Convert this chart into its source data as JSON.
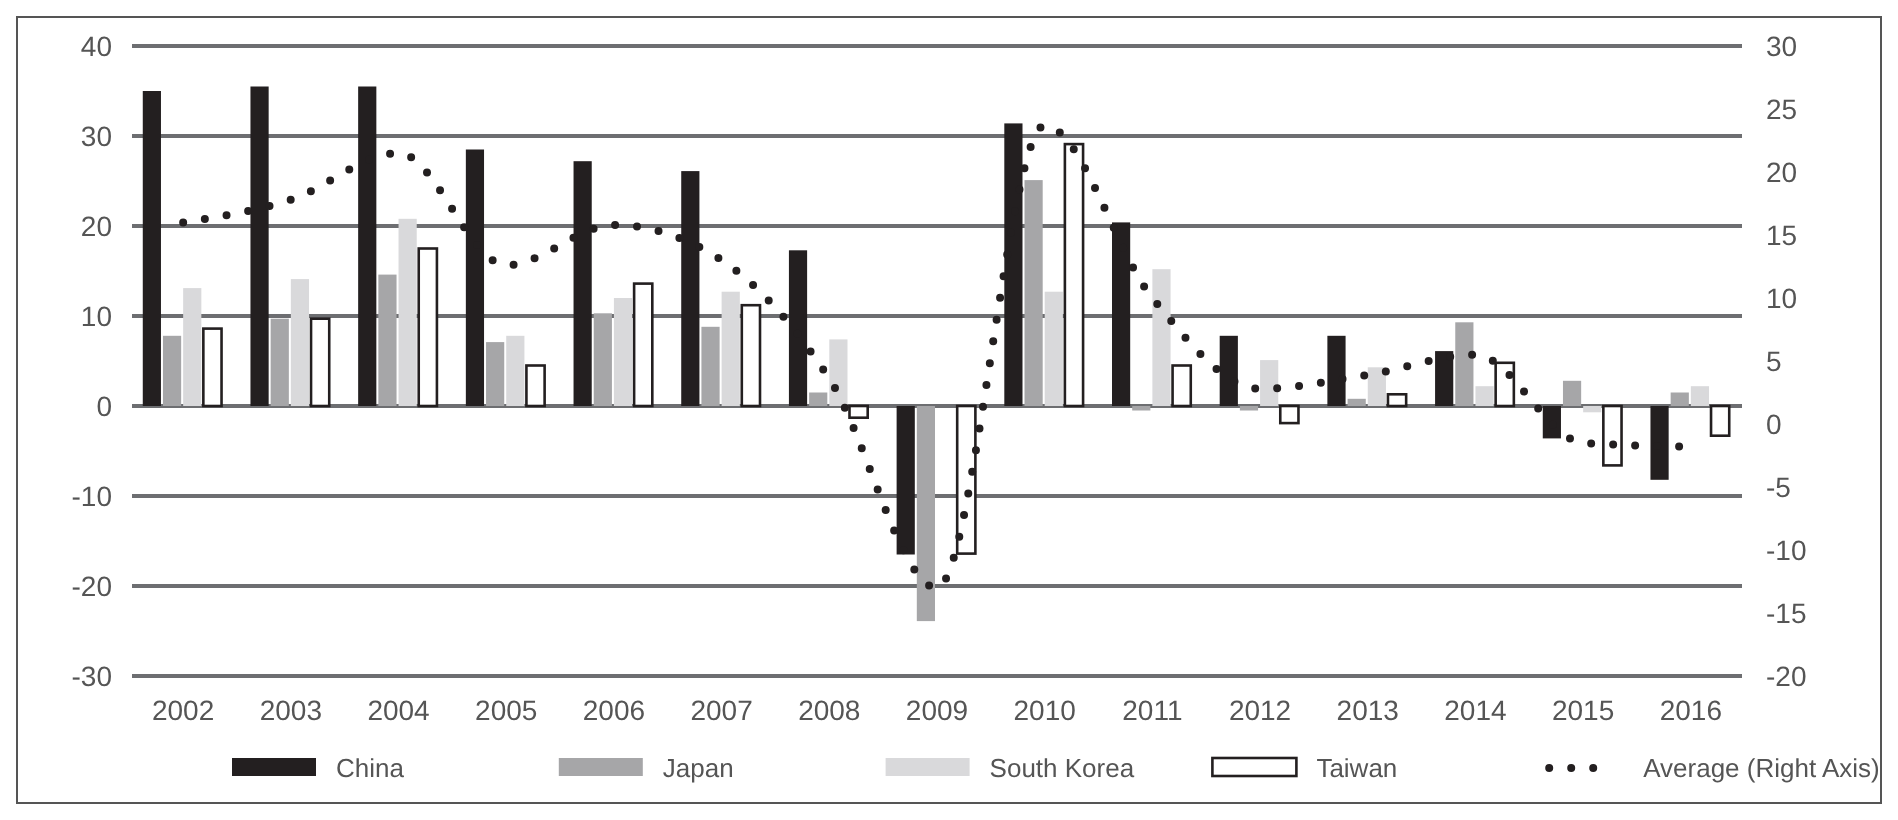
{
  "chart_data": {
    "type": "bar",
    "categories": [
      "2002",
      "2003",
      "2004",
      "2005",
      "2006",
      "2007",
      "2008",
      "2009",
      "2010",
      "2011",
      "2012",
      "2013",
      "2014",
      "2015",
      "2016"
    ],
    "series": [
      {
        "name": "China",
        "color": "#231f20",
        "values": [
          35,
          35.5,
          35.5,
          28.5,
          27.2,
          26.1,
          17.3,
          -16.5,
          31.4,
          20.4,
          7.8,
          7.8,
          6.1,
          -3.6,
          -8.2
        ]
      },
      {
        "name": "Japan",
        "color": "#a6a6a8",
        "values": [
          7.8,
          9.7,
          14.6,
          7.1,
          10.3,
          8.8,
          1.5,
          -23.9,
          25.1,
          -0.5,
          -0.5,
          0.8,
          9.3,
          2.8,
          1.5
        ]
      },
      {
        "name": "South Korea",
        "color": "#d9d9db",
        "values": [
          13.1,
          14.1,
          20.8,
          7.8,
          12,
          12.7,
          7.4,
          null,
          12.7,
          15.2,
          5.1,
          4.3,
          2.2,
          -0.7,
          2.2
        ]
      },
      {
        "name": "Taiwan",
        "color": "#ffffff",
        "values": [
          8.6,
          9.7,
          17.5,
          4.5,
          13.6,
          11.2,
          -1.3,
          -16.4,
          29.1,
          4.5,
          -1.9,
          1.3,
          4.8,
          -6.6,
          -3.3
        ]
      },
      {
        "name": "Average (Right Axis)",
        "type": "line",
        "axis": "y2",
        "color": "#231f20",
        "marker": "none",
        "line_style": "dotted",
        "values": [
          16,
          17.8,
          21.5,
          12.6,
          15.8,
          13,
          3.6,
          -13,
          23.7,
          10,
          2.8,
          3.9,
          5.5,
          -1.5,
          -1.8
        ]
      }
    ],
    "ylim": [
      -30,
      40
    ],
    "yticks": [
      -30,
      -20,
      -10,
      0,
      10,
      20,
      30,
      40
    ],
    "y2lim": [
      -20,
      30
    ],
    "y2ticks": [
      -20,
      -15,
      -10,
      -5,
      0,
      5,
      10,
      15,
      20,
      25,
      30
    ],
    "grid": "y",
    "legend": "bottom"
  }
}
